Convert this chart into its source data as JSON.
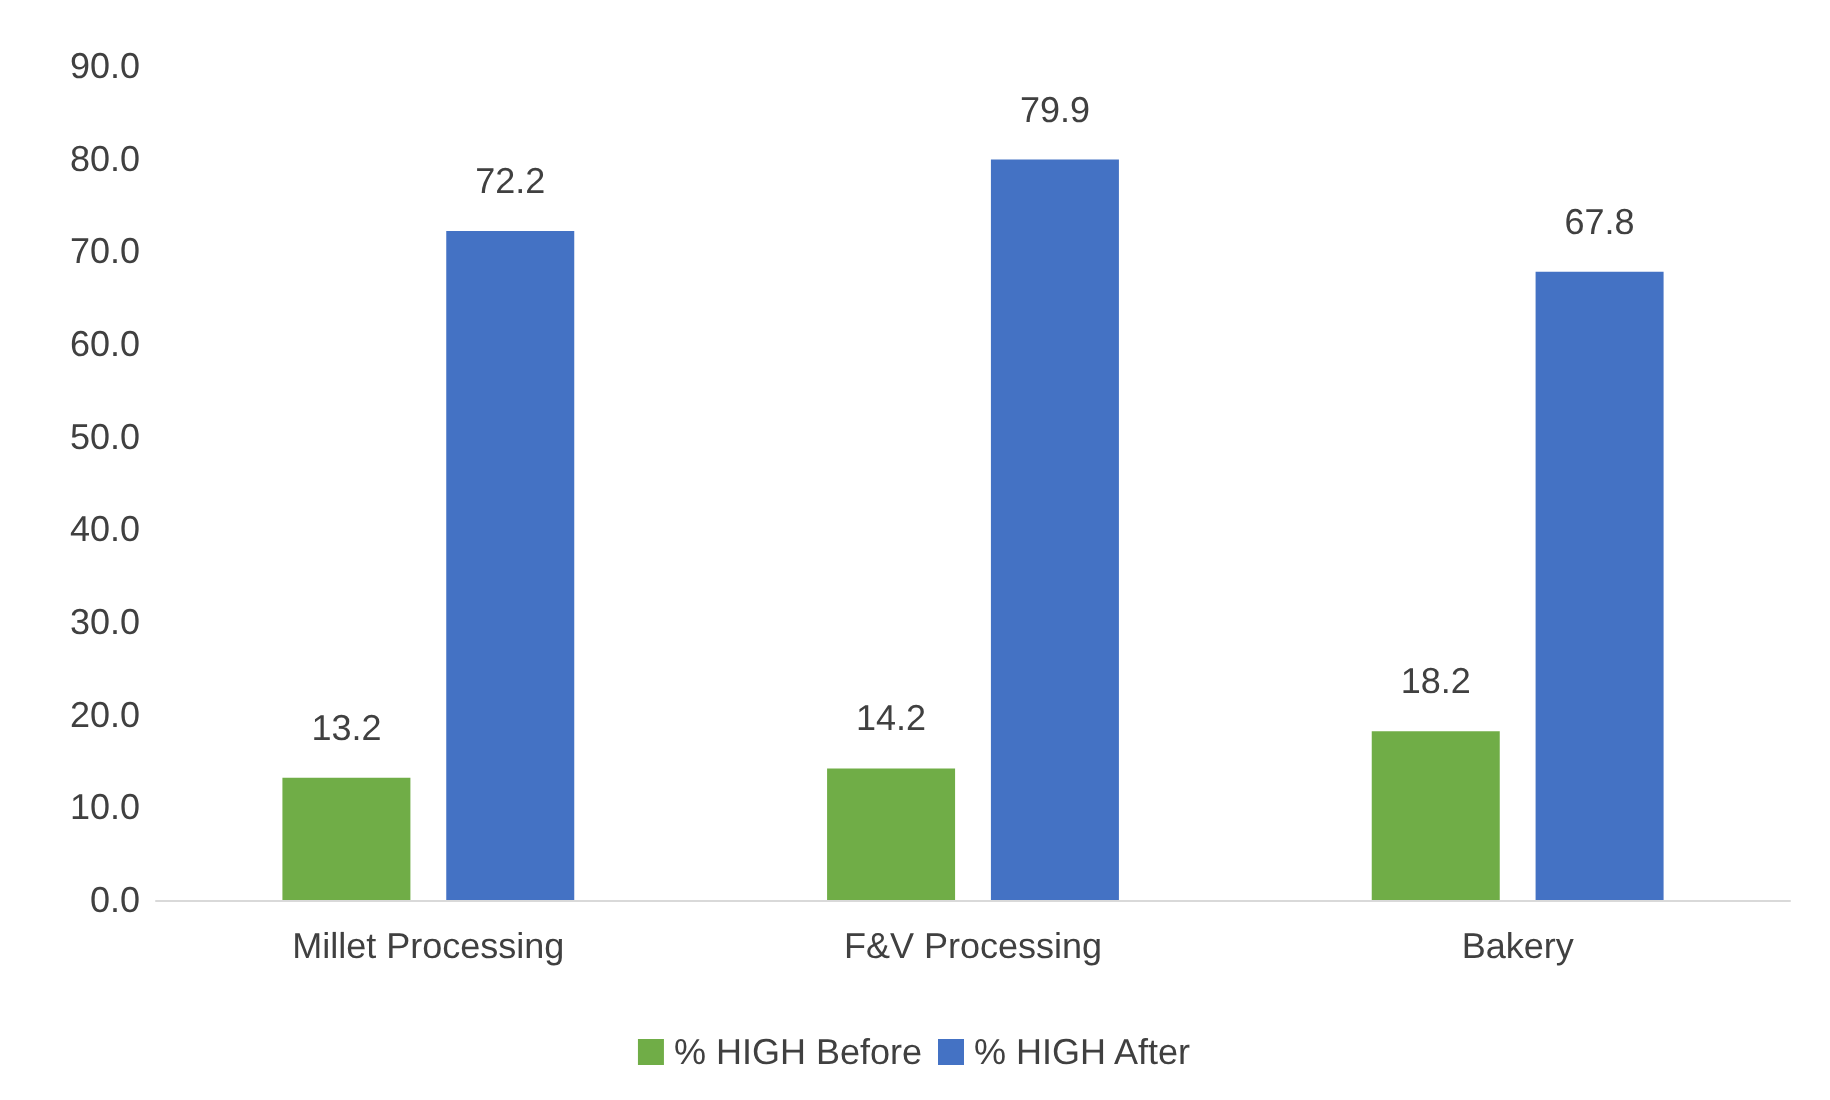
{
  "chart_data": {
    "type": "bar",
    "categories": [
      "Millet Processing",
      "F&V Processing",
      "Bakery"
    ],
    "series": [
      {
        "name": "% HIGH Before",
        "color": "#70ad47",
        "values": [
          13.2,
          14.2,
          18.2
        ]
      },
      {
        "name": "% HIGH After",
        "color": "#4472c4",
        "values": [
          72.2,
          79.9,
          67.8
        ]
      }
    ],
    "ylim": [
      0,
      90
    ],
    "yticks": [
      {
        "value": 0,
        "label": "0.0"
      },
      {
        "value": 10,
        "label": "10.0"
      },
      {
        "value": 20,
        "label": "20.0"
      },
      {
        "value": 30,
        "label": "30.0"
      },
      {
        "value": 40,
        "label": "40.0"
      },
      {
        "value": 50,
        "label": "50.0"
      },
      {
        "value": 60,
        "label": "60.0"
      },
      {
        "value": 70,
        "label": "70.0"
      },
      {
        "value": 80,
        "label": "80.0"
      },
      {
        "value": 90,
        "label": "90.0"
      }
    ],
    "grid": false,
    "data_labels": true,
    "legend": "bottom"
  }
}
